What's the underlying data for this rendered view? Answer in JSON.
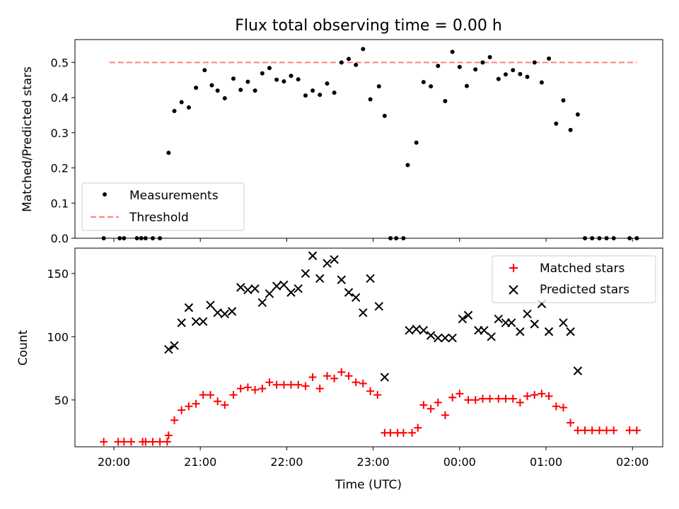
{
  "title": "Flux total observing time = 0.00 h",
  "chart_data": [
    {
      "type": "scatter",
      "ylabel": "Matched/Predicted stars",
      "ylim": [
        0,
        0.565
      ],
      "yticks": [
        "0.0",
        "0.1",
        "0.2",
        "0.3",
        "0.4",
        "0.5"
      ],
      "threshold": 0.5,
      "legend": {
        "placement": "lower-left",
        "entries": [
          "Measurements",
          "Threshold"
        ]
      },
      "series": [
        {
          "name": "Measurements",
          "color": "#000000",
          "points": [
            [
              19.883,
              0
            ],
            [
              20.067,
              0
            ],
            [
              20.117,
              0
            ],
            [
              20.267,
              0
            ],
            [
              20.317,
              0
            ],
            [
              20.367,
              0
            ],
            [
              20.45,
              0
            ],
            [
              20.533,
              0
            ],
            [
              20.633,
              0.243
            ],
            [
              20.7,
              0.362
            ],
            [
              20.783,
              0.387
            ],
            [
              20.867,
              0.372
            ],
            [
              20.95,
              0.428
            ],
            [
              21.05,
              0.478
            ],
            [
              21.133,
              0.435
            ],
            [
              21.2,
              0.42
            ],
            [
              21.283,
              0.398
            ],
            [
              21.383,
              0.454
            ],
            [
              21.467,
              0.422
            ],
            [
              21.55,
              0.445
            ],
            [
              21.633,
              0.42
            ],
            [
              21.717,
              0.469
            ],
            [
              21.8,
              0.484
            ],
            [
              21.883,
              0.451
            ],
            [
              21.967,
              0.446
            ],
            [
              22.05,
              0.462
            ],
            [
              22.133,
              0.452
            ],
            [
              22.217,
              0.406
            ],
            [
              22.3,
              0.42
            ],
            [
              22.383,
              0.408
            ],
            [
              22.467,
              0.44
            ],
            [
              22.55,
              0.414
            ],
            [
              22.633,
              0.5
            ],
            [
              22.717,
              0.51
            ],
            [
              22.8,
              0.493
            ],
            [
              22.883,
              0.538
            ],
            [
              22.967,
              0.395
            ],
            [
              23.067,
              0.432
            ],
            [
              23.133,
              0.348
            ],
            [
              23.2,
              0
            ],
            [
              23.267,
              0
            ],
            [
              23.35,
              0
            ],
            [
              23.4,
              0.208
            ],
            [
              23.5,
              0.272
            ],
            [
              23.583,
              0.444
            ],
            [
              23.667,
              0.432
            ],
            [
              23.75,
              0.49
            ],
            [
              23.833,
              0.39
            ],
            [
              23.917,
              0.53
            ],
            [
              24.0,
              0.487
            ],
            [
              24.083,
              0.433
            ],
            [
              24.183,
              0.48
            ],
            [
              24.267,
              0.5
            ],
            [
              24.35,
              0.515
            ],
            [
              24.45,
              0.453
            ],
            [
              24.533,
              0.466
            ],
            [
              24.617,
              0.478
            ],
            [
              24.7,
              0.467
            ],
            [
              24.783,
              0.459
            ],
            [
              24.867,
              0.5
            ],
            [
              24.95,
              0.443
            ],
            [
              25.033,
              0.511
            ],
            [
              25.117,
              0.326
            ],
            [
              25.2,
              0.392
            ],
            [
              25.283,
              0.308
            ],
            [
              25.367,
              0.352
            ],
            [
              25.45,
              0
            ],
            [
              25.533,
              0
            ],
            [
              25.617,
              0
            ],
            [
              25.7,
              0
            ],
            [
              25.783,
              0
            ],
            [
              25.967,
              0
            ],
            [
              26.05,
              0
            ]
          ]
        },
        {
          "name": "Threshold",
          "color": "#ff8080",
          "x": [
            19.95,
            26.05
          ],
          "y": [
            0.5,
            0.5
          ]
        }
      ]
    },
    {
      "type": "scatter",
      "xlabel": "Time (UTC)",
      "ylabel": "Count",
      "ylim": [
        13,
        170
      ],
      "yticks": [
        "50",
        "100",
        "150"
      ],
      "xticks": [
        "20:00",
        "21:00",
        "22:00",
        "23:00",
        "00:00",
        "01:00",
        "02:00"
      ],
      "legend": {
        "placement": "upper-right",
        "entries": [
          "Matched stars",
          "Predicted stars"
        ]
      },
      "series": [
        {
          "name": "Matched stars",
          "color": "#ff0000",
          "marker": "+",
          "points": [
            [
              19.883,
              17
            ],
            [
              20.05,
              17
            ],
            [
              20.117,
              17
            ],
            [
              20.2,
              17
            ],
            [
              20.333,
              17
            ],
            [
              20.367,
              17
            ],
            [
              20.45,
              17
            ],
            [
              20.533,
              17
            ],
            [
              20.617,
              17
            ],
            [
              20.633,
              22
            ],
            [
              20.7,
              34
            ],
            [
              20.783,
              42
            ],
            [
              20.867,
              45
            ],
            [
              20.95,
              47
            ],
            [
              21.033,
              54
            ],
            [
              21.117,
              54
            ],
            [
              21.2,
              49
            ],
            [
              21.283,
              46
            ],
            [
              21.383,
              54
            ],
            [
              21.467,
              59
            ],
            [
              21.55,
              60
            ],
            [
              21.633,
              58
            ],
            [
              21.717,
              59
            ],
            [
              21.8,
              64
            ],
            [
              21.883,
              62
            ],
            [
              21.967,
              62
            ],
            [
              22.05,
              62
            ],
            [
              22.133,
              62
            ],
            [
              22.217,
              61
            ],
            [
              22.3,
              68
            ],
            [
              22.383,
              59
            ],
            [
              22.467,
              69
            ],
            [
              22.55,
              67
            ],
            [
              22.633,
              72
            ],
            [
              22.717,
              69
            ],
            [
              22.8,
              64
            ],
            [
              22.883,
              63
            ],
            [
              22.967,
              57
            ],
            [
              23.05,
              54
            ],
            [
              23.133,
              24
            ],
            [
              23.2,
              24
            ],
            [
              23.283,
              24
            ],
            [
              23.35,
              24
            ],
            [
              23.45,
              24
            ],
            [
              23.517,
              28
            ],
            [
              23.583,
              46
            ],
            [
              23.667,
              43
            ],
            [
              23.75,
              48
            ],
            [
              23.833,
              38
            ],
            [
              23.917,
              52
            ],
            [
              24.0,
              55
            ],
            [
              24.1,
              50
            ],
            [
              24.183,
              50
            ],
            [
              24.267,
              51
            ],
            [
              24.35,
              51
            ],
            [
              24.45,
              51
            ],
            [
              24.533,
              51
            ],
            [
              24.617,
              51
            ],
            [
              24.7,
              48
            ],
            [
              24.783,
              53
            ],
            [
              24.867,
              54
            ],
            [
              24.95,
              55
            ],
            [
              25.033,
              53
            ],
            [
              25.117,
              45
            ],
            [
              25.2,
              44
            ],
            [
              25.283,
              32
            ],
            [
              25.367,
              26
            ],
            [
              25.45,
              26
            ],
            [
              25.533,
              26
            ],
            [
              25.617,
              26
            ],
            [
              25.7,
              26
            ],
            [
              25.783,
              26
            ],
            [
              25.967,
              26
            ],
            [
              26.05,
              26
            ]
          ]
        },
        {
          "name": "Predicted stars",
          "color": "#000000",
          "marker": "x",
          "points": [
            [
              20.633,
              90
            ],
            [
              20.7,
              93
            ],
            [
              20.783,
              111
            ],
            [
              20.867,
              123
            ],
            [
              20.95,
              112
            ],
            [
              21.033,
              112
            ],
            [
              21.117,
              125
            ],
            [
              21.2,
              119
            ],
            [
              21.283,
              118
            ],
            [
              21.367,
              120
            ],
            [
              21.467,
              139
            ],
            [
              21.55,
              137
            ],
            [
              21.633,
              138
            ],
            [
              21.717,
              127
            ],
            [
              21.8,
              134
            ],
            [
              21.883,
              140
            ],
            [
              21.967,
              141
            ],
            [
              22.05,
              135
            ],
            [
              22.133,
              138
            ],
            [
              22.217,
              150
            ],
            [
              22.3,
              164
            ],
            [
              22.383,
              146
            ],
            [
              22.467,
              158
            ],
            [
              22.55,
              161
            ],
            [
              22.633,
              145
            ],
            [
              22.717,
              135
            ],
            [
              22.8,
              131
            ],
            [
              22.883,
              119
            ],
            [
              22.967,
              146
            ],
            [
              23.067,
              124
            ],
            [
              23.133,
              68
            ],
            [
              23.417,
              105
            ],
            [
              23.5,
              106
            ],
            [
              23.583,
              105
            ],
            [
              23.667,
              101
            ],
            [
              23.75,
              99
            ],
            [
              23.833,
              99
            ],
            [
              23.917,
              99
            ],
            [
              24.033,
              114
            ],
            [
              24.1,
              117
            ],
            [
              24.217,
              105
            ],
            [
              24.283,
              105
            ],
            [
              24.367,
              100
            ],
            [
              24.45,
              114
            ],
            [
              24.533,
              111
            ],
            [
              24.6,
              111
            ],
            [
              24.7,
              104
            ],
            [
              24.783,
              118
            ],
            [
              24.867,
              110
            ],
            [
              24.95,
              126
            ],
            [
              25.033,
              104
            ],
            [
              25.2,
              111
            ],
            [
              25.283,
              104
            ],
            [
              25.367,
              73
            ]
          ]
        }
      ]
    }
  ]
}
